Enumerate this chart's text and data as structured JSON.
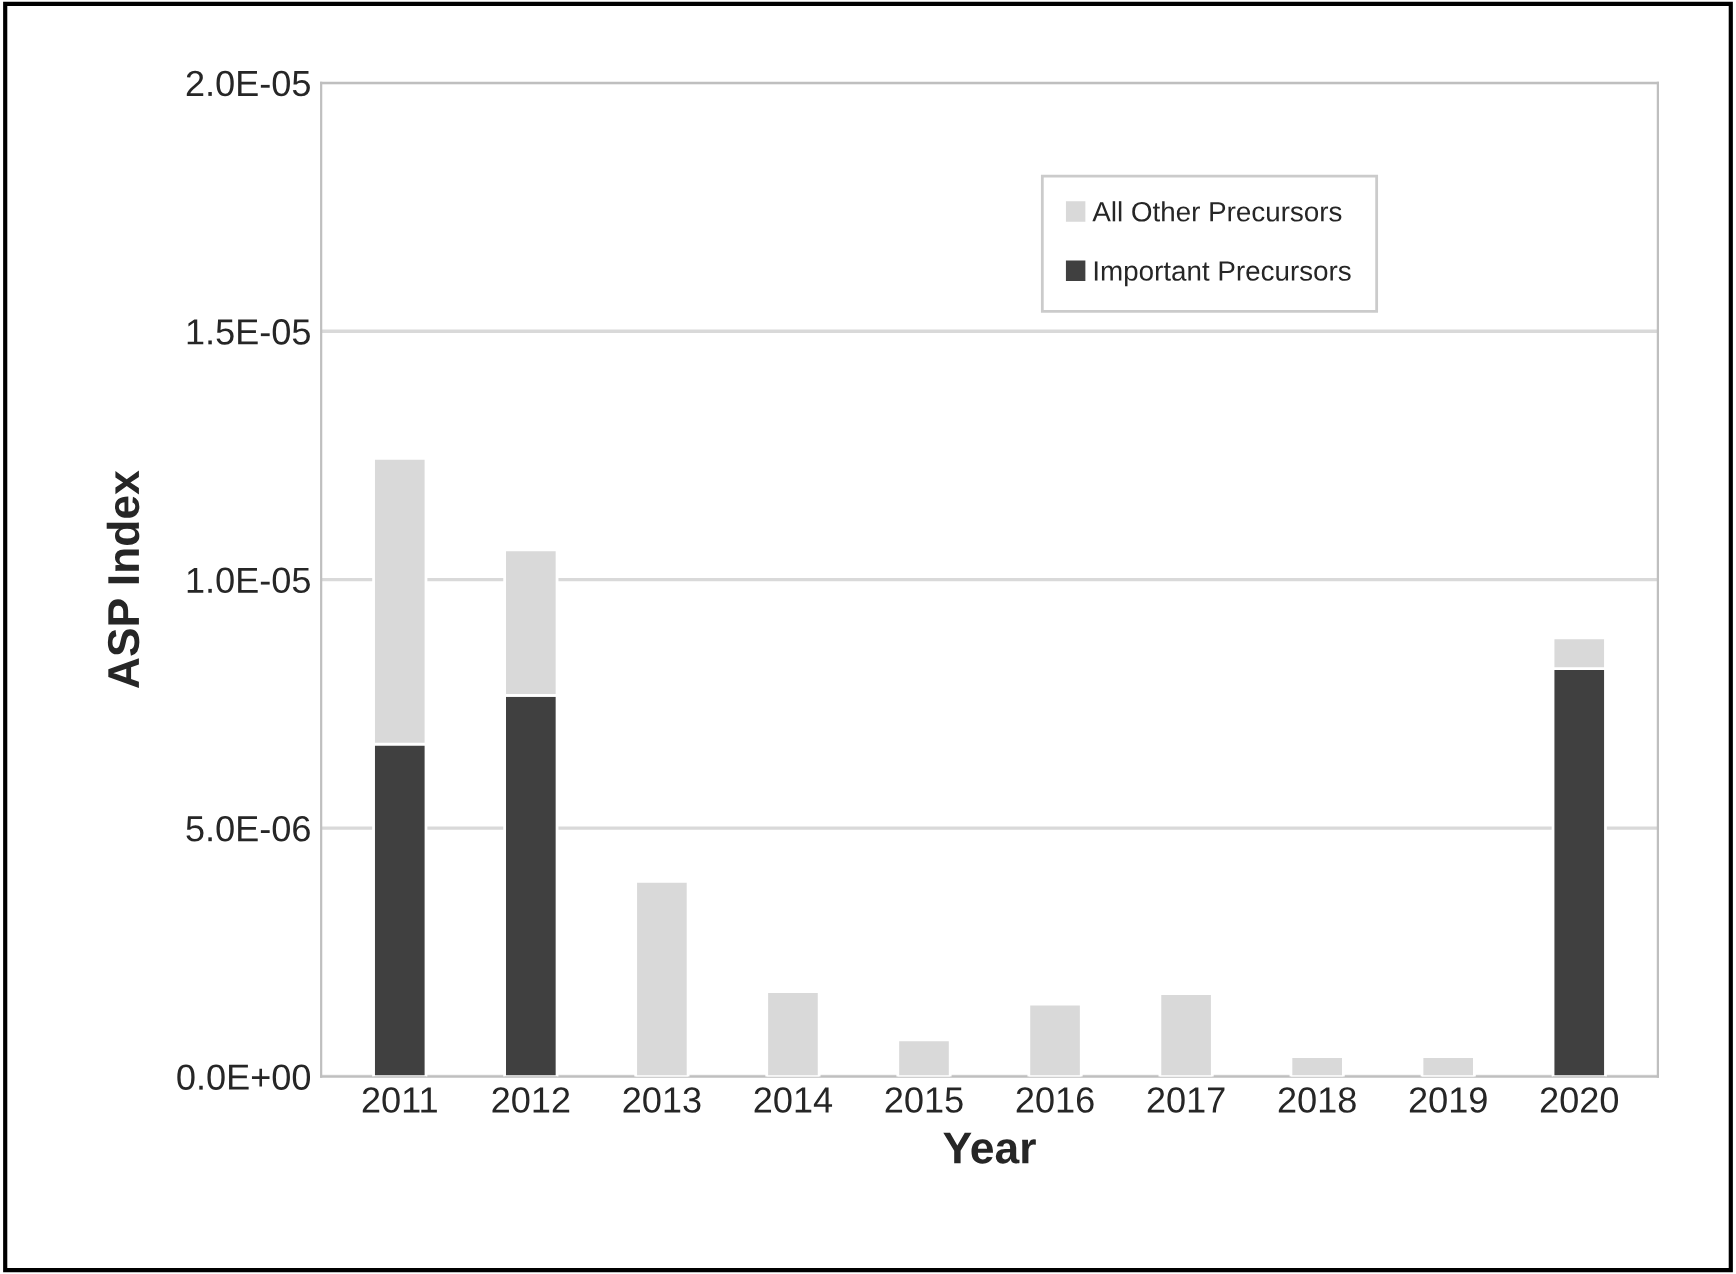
{
  "chart_data": {
    "type": "bar",
    "stacked": true,
    "xlabel": "Year",
    "ylabel": "ASP Index",
    "categories": [
      "2011",
      "2012",
      "2013",
      "2014",
      "2015",
      "2016",
      "2017",
      "2018",
      "2019",
      "2020"
    ],
    "series": [
      {
        "name": "Important Precursors",
        "color": "#404040",
        "values": [
          6.69e-06,
          7.67e-06,
          0,
          0,
          0,
          0,
          0,
          0,
          0,
          8.21e-06
        ]
      },
      {
        "name": "All Other Precursors",
        "color": "#d9d9d9",
        "values": [
          5.75e-06,
          2.93e-06,
          3.93e-06,
          1.71e-06,
          7.4e-07,
          1.46e-06,
          1.67e-06,
          4e-07,
          4e-07,
          6.2e-07
        ]
      }
    ],
    "ylim": [
      0,
      2e-05
    ],
    "yticks": [
      {
        "value": 0,
        "label": "0.0E+00"
      },
      {
        "value": 5e-06,
        "label": "5.0E-06"
      },
      {
        "value": 1e-05,
        "label": "1.0E-05"
      },
      {
        "value": 1.5e-05,
        "label": "1.5E-05"
      },
      {
        "value": 2e-05,
        "label": "2.0E-05"
      }
    ],
    "grid": "y",
    "legend": "top right"
  }
}
